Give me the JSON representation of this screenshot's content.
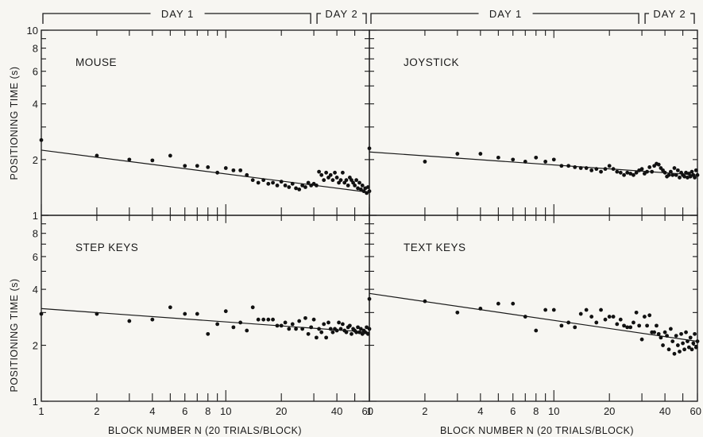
{
  "day_brackets": {
    "day1": "DAY 1",
    "day2": "DAY 2"
  },
  "ylabel": "POSITIONING TIME (s)",
  "xlabel": "BLOCK NUMBER N (20 TRIALS/BLOCK)",
  "chart_data": [
    {
      "type": "scatter",
      "title": "MOUSE",
      "log_x": true,
      "log_y": true,
      "xlim": [
        1,
        60
      ],
      "ylim": [
        1,
        10
      ],
      "x_ticklabels": [
        "1",
        "2",
        "4",
        "6",
        "8",
        "10",
        "20",
        "40",
        "60"
      ],
      "y_ticklabels": [
        "10",
        "8",
        "6",
        "4",
        "2",
        "1"
      ],
      "fit_line": {
        "x": [
          1,
          60
        ],
        "y": [
          2.25,
          1.33
        ]
      },
      "points": [
        [
          1,
          2.55
        ],
        [
          2,
          2.1
        ],
        [
          3,
          2.0
        ],
        [
          4,
          1.98
        ],
        [
          5,
          2.1
        ],
        [
          6,
          1.85
        ],
        [
          7,
          1.85
        ],
        [
          8,
          1.82
        ],
        [
          9,
          1.7
        ],
        [
          10,
          1.8
        ],
        [
          11,
          1.75
        ],
        [
          12,
          1.75
        ],
        [
          13,
          1.65
        ],
        [
          14,
          1.55
        ],
        [
          15,
          1.5
        ],
        [
          16,
          1.55
        ],
        [
          17,
          1.48
        ],
        [
          18,
          1.5
        ],
        [
          19,
          1.45
        ],
        [
          20,
          1.52
        ],
        [
          21,
          1.45
        ],
        [
          22,
          1.42
        ],
        [
          23,
          1.48
        ],
        [
          24,
          1.4
        ],
        [
          25,
          1.38
        ],
        [
          26,
          1.45
        ],
        [
          27,
          1.42
        ],
        [
          28,
          1.5
        ],
        [
          29,
          1.45
        ],
        [
          30,
          1.48
        ],
        [
          31,
          1.45
        ],
        [
          32,
          1.72
        ],
        [
          33,
          1.65
        ],
        [
          34,
          1.55
        ],
        [
          35,
          1.7
        ],
        [
          36,
          1.6
        ],
        [
          37,
          1.65
        ],
        [
          38,
          1.55
        ],
        [
          39,
          1.7
        ],
        [
          40,
          1.6
        ],
        [
          41,
          1.5
        ],
        [
          42,
          1.55
        ],
        [
          43,
          1.7
        ],
        [
          44,
          1.5
        ],
        [
          45,
          1.55
        ],
        [
          46,
          1.45
        ],
        [
          47,
          1.6
        ],
        [
          48,
          1.55
        ],
        [
          49,
          1.5
        ],
        [
          50,
          1.45
        ],
        [
          51,
          1.55
        ],
        [
          52,
          1.4
        ],
        [
          53,
          1.5
        ],
        [
          54,
          1.38
        ],
        [
          55,
          1.45
        ],
        [
          56,
          1.35
        ],
        [
          57,
          1.4
        ],
        [
          58,
          1.32
        ],
        [
          59,
          1.42
        ],
        [
          60,
          1.35
        ]
      ]
    },
    {
      "type": "scatter",
      "title": "JOYSTICK",
      "log_x": true,
      "log_y": true,
      "xlim": [
        1,
        60
      ],
      "ylim": [
        1,
        10
      ],
      "x_ticklabels": [
        "1",
        "2",
        "4",
        "6",
        "8",
        "10",
        "20",
        "40",
        "60"
      ],
      "y_ticklabels": [],
      "fit_line": {
        "x": [
          1,
          60
        ],
        "y": [
          2.2,
          1.65
        ]
      },
      "points": [
        [
          1,
          2.3
        ],
        [
          2,
          1.95
        ],
        [
          3,
          2.15
        ],
        [
          4,
          2.15
        ],
        [
          5,
          2.05
        ],
        [
          6,
          2.0
        ],
        [
          7,
          1.95
        ],
        [
          8,
          2.05
        ],
        [
          9,
          1.95
        ],
        [
          10,
          2.0
        ],
        [
          11,
          1.85
        ],
        [
          12,
          1.85
        ],
        [
          13,
          1.82
        ],
        [
          14,
          1.8
        ],
        [
          15,
          1.8
        ],
        [
          16,
          1.75
        ],
        [
          17,
          1.78
        ],
        [
          18,
          1.72
        ],
        [
          19,
          1.78
        ],
        [
          20,
          1.85
        ],
        [
          21,
          1.78
        ],
        [
          22,
          1.72
        ],
        [
          23,
          1.7
        ],
        [
          24,
          1.65
        ],
        [
          25,
          1.7
        ],
        [
          26,
          1.68
        ],
        [
          27,
          1.65
        ],
        [
          28,
          1.7
        ],
        [
          29,
          1.75
        ],
        [
          30,
          1.78
        ],
        [
          31,
          1.68
        ],
        [
          32,
          1.72
        ],
        [
          33,
          1.82
        ],
        [
          34,
          1.72
        ],
        [
          35,
          1.85
        ],
        [
          36,
          1.9
        ],
        [
          37,
          1.88
        ],
        [
          38,
          1.8
        ],
        [
          39,
          1.75
        ],
        [
          40,
          1.7
        ],
        [
          41,
          1.62
        ],
        [
          42,
          1.65
        ],
        [
          43,
          1.72
        ],
        [
          44,
          1.65
        ],
        [
          45,
          1.8
        ],
        [
          46,
          1.65
        ],
        [
          47,
          1.75
        ],
        [
          48,
          1.6
        ],
        [
          49,
          1.7
        ],
        [
          50,
          1.65
        ],
        [
          51,
          1.62
        ],
        [
          52,
          1.7
        ],
        [
          53,
          1.6
        ],
        [
          54,
          1.68
        ],
        [
          55,
          1.62
        ],
        [
          56,
          1.72
        ],
        [
          57,
          1.65
        ],
        [
          58,
          1.6
        ],
        [
          59,
          1.75
        ],
        [
          60,
          1.65
        ]
      ]
    },
    {
      "type": "scatter",
      "title": "STEP KEYS",
      "log_x": true,
      "log_y": true,
      "xlim": [
        1,
        60
      ],
      "ylim": [
        1,
        10
      ],
      "x_ticklabels": [
        "1",
        "2",
        "4",
        "6",
        "8",
        "10",
        "20",
        "40",
        "60"
      ],
      "y_ticklabels": [
        "8",
        "6",
        "4",
        "2",
        "1"
      ],
      "fit_line": {
        "x": [
          1,
          60
        ],
        "y": [
          3.15,
          2.35
        ]
      },
      "points": [
        [
          1,
          2.95
        ],
        [
          2,
          2.95
        ],
        [
          3,
          2.7
        ],
        [
          4,
          2.75
        ],
        [
          5,
          3.2
        ],
        [
          6,
          2.95
        ],
        [
          7,
          2.95
        ],
        [
          8,
          2.3
        ],
        [
          9,
          2.6
        ],
        [
          10,
          3.05
        ],
        [
          11,
          2.5
        ],
        [
          12,
          2.65
        ],
        [
          13,
          2.4
        ],
        [
          14,
          3.2
        ],
        [
          15,
          2.75
        ],
        [
          16,
          2.75
        ],
        [
          17,
          2.75
        ],
        [
          18,
          2.75
        ],
        [
          19,
          2.55
        ],
        [
          20,
          2.55
        ],
        [
          21,
          2.65
        ],
        [
          22,
          2.45
        ],
        [
          23,
          2.6
        ],
        [
          24,
          2.45
        ],
        [
          25,
          2.7
        ],
        [
          26,
          2.45
        ],
        [
          27,
          2.8
        ],
        [
          28,
          2.3
        ],
        [
          29,
          2.5
        ],
        [
          30,
          2.75
        ],
        [
          31,
          2.2
        ],
        [
          32,
          2.45
        ],
        [
          33,
          2.35
        ],
        [
          34,
          2.6
        ],
        [
          35,
          2.2
        ],
        [
          36,
          2.65
        ],
        [
          37,
          2.45
        ],
        [
          38,
          2.35
        ],
        [
          39,
          2.45
        ],
        [
          40,
          2.4
        ],
        [
          41,
          2.65
        ],
        [
          42,
          2.45
        ],
        [
          43,
          2.6
        ],
        [
          44,
          2.4
        ],
        [
          45,
          2.35
        ],
        [
          46,
          2.5
        ],
        [
          47,
          2.55
        ],
        [
          48,
          2.3
        ],
        [
          49,
          2.45
        ],
        [
          50,
          2.4
        ],
        [
          51,
          2.35
        ],
        [
          52,
          2.5
        ],
        [
          53,
          2.35
        ],
        [
          54,
          2.45
        ],
        [
          55,
          2.3
        ],
        [
          56,
          2.4
        ],
        [
          57,
          2.35
        ],
        [
          58,
          2.5
        ],
        [
          59,
          2.3
        ],
        [
          60,
          2.45
        ]
      ]
    },
    {
      "type": "scatter",
      "title": "TEXT KEYS",
      "log_x": true,
      "log_y": true,
      "xlim": [
        1,
        60
      ],
      "ylim": [
        1,
        10
      ],
      "x_ticklabels": [
        "1",
        "2",
        "4",
        "6",
        "8",
        "10",
        "20",
        "40",
        "60"
      ],
      "y_ticklabels": [],
      "fit_line": {
        "x": [
          1,
          60
        ],
        "y": [
          3.8,
          2.1
        ]
      },
      "points": [
        [
          1,
          3.55
        ],
        [
          2,
          3.45
        ],
        [
          3,
          3.0
        ],
        [
          4,
          3.15
        ],
        [
          5,
          3.35
        ],
        [
          6,
          3.35
        ],
        [
          7,
          2.85
        ],
        [
          8,
          2.4
        ],
        [
          9,
          3.1
        ],
        [
          10,
          3.1
        ],
        [
          11,
          2.55
        ],
        [
          12,
          2.65
        ],
        [
          13,
          2.5
        ],
        [
          14,
          2.95
        ],
        [
          15,
          3.1
        ],
        [
          16,
          2.85
        ],
        [
          17,
          2.65
        ],
        [
          18,
          3.1
        ],
        [
          19,
          2.75
        ],
        [
          20,
          2.85
        ],
        [
          21,
          2.85
        ],
        [
          22,
          2.6
        ],
        [
          23,
          2.75
        ],
        [
          24,
          2.55
        ],
        [
          25,
          2.5
        ],
        [
          26,
          2.5
        ],
        [
          27,
          2.65
        ],
        [
          28,
          3.0
        ],
        [
          29,
          2.55
        ],
        [
          30,
          2.15
        ],
        [
          31,
          2.85
        ],
        [
          32,
          2.55
        ],
        [
          33,
          2.9
        ],
        [
          34,
          2.35
        ],
        [
          35,
          2.35
        ],
        [
          36,
          2.55
        ],
        [
          37,
          2.3
        ],
        [
          38,
          2.2
        ],
        [
          39,
          2.0
        ],
        [
          40,
          2.35
        ],
        [
          41,
          2.25
        ],
        [
          42,
          1.9
        ],
        [
          43,
          2.45
        ],
        [
          44,
          2.1
        ],
        [
          45,
          1.8
        ],
        [
          46,
          2.25
        ],
        [
          47,
          2.0
        ],
        [
          48,
          1.85
        ],
        [
          49,
          2.3
        ],
        [
          50,
          2.05
        ],
        [
          51,
          1.9
        ],
        [
          52,
          2.35
        ],
        [
          53,
          2.1
        ],
        [
          54,
          1.95
        ],
        [
          55,
          2.2
        ],
        [
          56,
          1.9
        ],
        [
          57,
          2.05
        ],
        [
          58,
          2.3
        ],
        [
          59,
          1.95
        ],
        [
          60,
          2.1
        ]
      ]
    }
  ]
}
